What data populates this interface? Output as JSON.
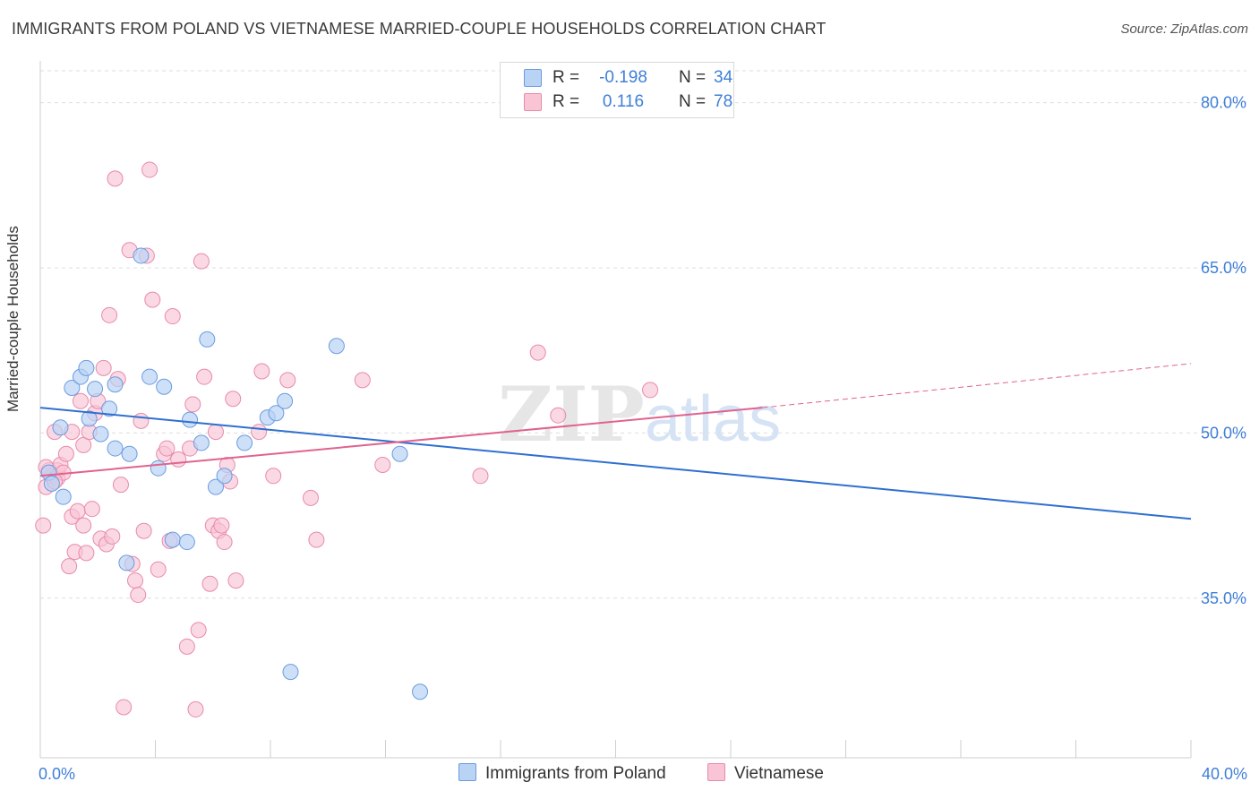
{
  "title": "IMMIGRANTS FROM POLAND VS VIETNAMESE MARRIED-COUPLE HOUSEHOLDS CORRELATION CHART",
  "source": "Source: ZipAtlas.com",
  "watermark": {
    "zip": "ZIP",
    "atlas": "atlas"
  },
  "legend": {
    "row1": {
      "r_label": "R =",
      "r_value": "-0.198",
      "n_label": "N =",
      "n_value": "34"
    },
    "row2": {
      "r_label": "R =",
      "r_value": "0.116",
      "n_label": "N =",
      "n_value": "78"
    }
  },
  "bottom_legend": {
    "poland": "Immigrants from Poland",
    "vietnamese": "Vietnamese"
  },
  "colors": {
    "poland_fill": "#b9d3f5",
    "poland_stroke": "#6a9be0",
    "poland_line": "#2f6fd0",
    "viet_fill": "#f9c5d5",
    "viet_stroke": "#e88aaa",
    "viet_line": "#e0638e",
    "grid": "#dedede",
    "tick_label": "#3f7fd8"
  },
  "chart_data": {
    "type": "scatter",
    "title": "IMMIGRANTS FROM POLAND VS VIETNAMESE MARRIED-COUPLE HOUSEHOLDS CORRELATION CHART",
    "xlabel": "",
    "ylabel": "Married-couple Households",
    "xlim": [
      0,
      40
    ],
    "ylim": [
      20.5,
      83.3
    ],
    "x_tick_labels": [
      "0.0%",
      "40.0%"
    ],
    "y_ticks": [
      35,
      50,
      65,
      80
    ],
    "y_tick_labels": [
      "35.0%",
      "50.0%",
      "65.0%",
      "80.0%"
    ],
    "series": [
      {
        "name": "Immigrants from Poland",
        "r": -0.198,
        "n": 34,
        "trend": {
          "x": [
            0,
            40
          ],
          "y": [
            52.3,
            42.2
          ]
        },
        "points": [
          [
            0.3,
            46.4
          ],
          [
            0.4,
            45.4
          ],
          [
            0.7,
            50.5
          ],
          [
            0.8,
            44.2
          ],
          [
            1.1,
            54.1
          ],
          [
            1.4,
            55.1
          ],
          [
            1.6,
            55.9
          ],
          [
            1.7,
            51.3
          ],
          [
            1.9,
            54.0
          ],
          [
            2.1,
            49.9
          ],
          [
            2.4,
            52.2
          ],
          [
            2.6,
            48.6
          ],
          [
            2.6,
            54.4
          ],
          [
            3.0,
            38.2
          ],
          [
            3.1,
            48.1
          ],
          [
            3.5,
            66.1
          ],
          [
            3.8,
            55.1
          ],
          [
            4.1,
            46.8
          ],
          [
            4.3,
            54.2
          ],
          [
            4.6,
            40.3
          ],
          [
            5.1,
            40.1
          ],
          [
            5.2,
            51.2
          ],
          [
            5.6,
            49.1
          ],
          [
            5.8,
            58.5
          ],
          [
            6.1,
            45.1
          ],
          [
            6.4,
            46.1
          ],
          [
            7.1,
            49.1
          ],
          [
            7.9,
            51.4
          ],
          [
            8.2,
            51.8
          ],
          [
            8.5,
            52.9
          ],
          [
            8.7,
            28.3
          ],
          [
            10.3,
            57.9
          ],
          [
            12.5,
            48.1
          ],
          [
            13.2,
            26.5
          ]
        ]
      },
      {
        "name": "Vietnamese",
        "r": 0.116,
        "n": 78,
        "trend": {
          "x": [
            0,
            25.1
          ],
          "y": [
            46.1,
            52.3
          ]
        },
        "trend_dashed": {
          "x": [
            25.1,
            40
          ],
          "y": [
            52.3,
            56.3
          ]
        },
        "points": [
          [
            0.1,
            41.6
          ],
          [
            0.2,
            45.1
          ],
          [
            0.3,
            46.6
          ],
          [
            0.4,
            46.1
          ],
          [
            0.5,
            50.1
          ],
          [
            0.6,
            45.9
          ],
          [
            0.6,
            46.6
          ],
          [
            0.7,
            47.1
          ],
          [
            0.8,
            46.4
          ],
          [
            0.9,
            48.1
          ],
          [
            1.0,
            37.9
          ],
          [
            1.1,
            42.4
          ],
          [
            1.1,
            50.1
          ],
          [
            1.2,
            39.2
          ],
          [
            1.3,
            42.9
          ],
          [
            1.4,
            52.9
          ],
          [
            1.5,
            48.9
          ],
          [
            1.5,
            41.6
          ],
          [
            1.6,
            39.1
          ],
          [
            1.7,
            50.1
          ],
          [
            1.8,
            43.1
          ],
          [
            1.9,
            51.8
          ],
          [
            2.0,
            52.9
          ],
          [
            2.1,
            40.4
          ],
          [
            2.2,
            55.9
          ],
          [
            2.3,
            39.9
          ],
          [
            2.4,
            60.7
          ],
          [
            2.5,
            40.6
          ],
          [
            2.6,
            73.1
          ],
          [
            2.7,
            54.9
          ],
          [
            2.8,
            45.3
          ],
          [
            2.9,
            25.1
          ],
          [
            3.1,
            66.6
          ],
          [
            3.2,
            38.1
          ],
          [
            3.3,
            36.6
          ],
          [
            3.4,
            35.3
          ],
          [
            3.5,
            51.1
          ],
          [
            3.6,
            41.1
          ],
          [
            3.7,
            66.1
          ],
          [
            3.8,
            73.9
          ],
          [
            3.9,
            62.1
          ],
          [
            4.1,
            37.6
          ],
          [
            4.3,
            48.1
          ],
          [
            4.4,
            48.6
          ],
          [
            4.5,
            40.2
          ],
          [
            4.6,
            60.6
          ],
          [
            4.8,
            47.6
          ],
          [
            5.1,
            30.6
          ],
          [
            5.2,
            48.6
          ],
          [
            5.3,
            52.6
          ],
          [
            5.4,
            24.9
          ],
          [
            5.5,
            32.1
          ],
          [
            5.6,
            65.6
          ],
          [
            5.7,
            55.1
          ],
          [
            5.9,
            36.3
          ],
          [
            6.0,
            41.6
          ],
          [
            6.1,
            50.1
          ],
          [
            6.2,
            41.1
          ],
          [
            6.3,
            41.6
          ],
          [
            6.4,
            40.1
          ],
          [
            6.5,
            47.1
          ],
          [
            6.6,
            45.6
          ],
          [
            6.7,
            53.1
          ],
          [
            6.8,
            36.6
          ],
          [
            7.6,
            50.1
          ],
          [
            7.7,
            55.6
          ],
          [
            8.1,
            46.1
          ],
          [
            8.6,
            54.8
          ],
          [
            9.4,
            44.1
          ],
          [
            9.6,
            40.3
          ],
          [
            11.2,
            54.8
          ],
          [
            11.9,
            47.1
          ],
          [
            15.3,
            46.1
          ],
          [
            17.3,
            57.3
          ],
          [
            18.0,
            51.6
          ],
          [
            21.2,
            53.9
          ],
          [
            0.2,
            46.9
          ],
          [
            0.5,
            45.6
          ]
        ]
      }
    ]
  }
}
